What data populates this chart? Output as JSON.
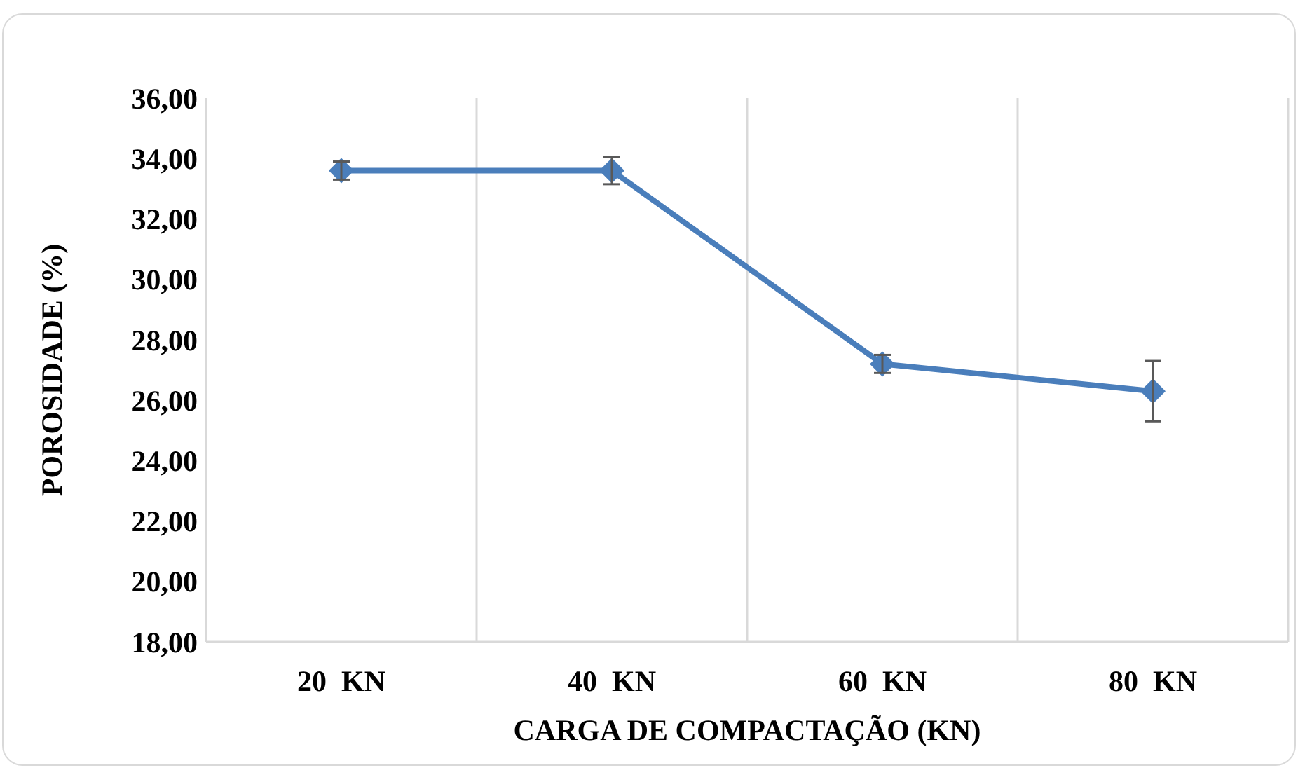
{
  "chart_data": {
    "type": "line",
    "xlabel": "CARGA DE COMPACTAÇÃO (KN)",
    "ylabel": "POROSIDADE (%)",
    "categories": [
      "20  KN",
      "40  KN",
      "60  KN",
      "80  KN"
    ],
    "series": [
      {
        "color": "#4a7ebb",
        "values": [
          33.6,
          33.6,
          27.2,
          26.3
        ],
        "errors": [
          0.3,
          0.45,
          0.3,
          1.0
        ]
      }
    ],
    "ylim": [
      18,
      36
    ],
    "yticks": [
      {
        "value": 18,
        "label": "18,00"
      },
      {
        "value": 20,
        "label": "20,00"
      },
      {
        "value": 22,
        "label": "22,00"
      },
      {
        "value": 24,
        "label": "24,00"
      },
      {
        "value": 26,
        "label": "26,00"
      },
      {
        "value": 28,
        "label": "28,00"
      },
      {
        "value": 30,
        "label": "30,00"
      },
      {
        "value": 32,
        "label": "32,00"
      },
      {
        "value": 34,
        "label": "34,00"
      },
      {
        "value": 36,
        "label": "36,00"
      }
    ],
    "grid": "x",
    "marker": "diamond",
    "line_style": "solid"
  }
}
